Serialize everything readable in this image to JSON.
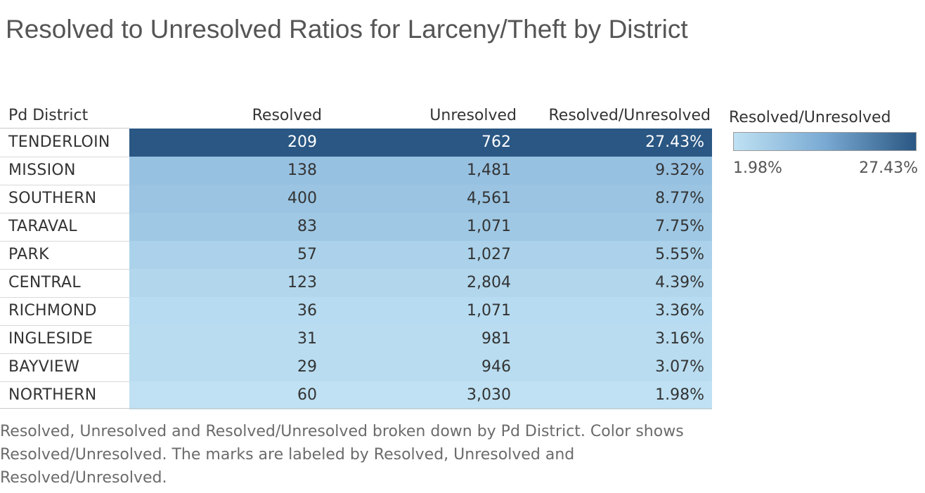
{
  "title": "Resolved to Unresolved Ratios for Larceny/Theft by District",
  "headers": {
    "district": "Pd District",
    "resolved": "Resolved",
    "unresolved": "Unresolved",
    "ratio": "Resolved/Unresolved"
  },
  "legend": {
    "title": "Resolved/Unresolved",
    "min_label": "1.98%",
    "max_label": "27.43%",
    "color_low": "#bfe1f3",
    "color_high": "#2a5783"
  },
  "caption": "Resolved, Unresolved and Resolved/Unresolved broken down by Pd District.  Color shows Resolved/Unresolved.  The marks are labeled by Resolved, Unresolved and Resolved/Unresolved.",
  "chart_data": {
    "type": "table",
    "columns": [
      "Pd District",
      "Resolved",
      "Unresolved",
      "Resolved/Unresolved"
    ],
    "color_field": "Resolved/Unresolved",
    "color_range": [
      1.98,
      27.43
    ],
    "rows": [
      {
        "district": "TENDERLOIN",
        "resolved": 209,
        "unresolved": 762,
        "ratio": 27.43,
        "resolved_label": "209",
        "unresolved_label": "762",
        "ratio_label": "27.43%"
      },
      {
        "district": "MISSION",
        "resolved": 138,
        "unresolved": 1481,
        "ratio": 9.32,
        "resolved_label": "138",
        "unresolved_label": "1,481",
        "ratio_label": "9.32%"
      },
      {
        "district": "SOUTHERN",
        "resolved": 400,
        "unresolved": 4561,
        "ratio": 8.77,
        "resolved_label": "400",
        "unresolved_label": "4,561",
        "ratio_label": "8.77%"
      },
      {
        "district": "TARAVAL",
        "resolved": 83,
        "unresolved": 1071,
        "ratio": 7.75,
        "resolved_label": "83",
        "unresolved_label": "1,071",
        "ratio_label": "7.75%"
      },
      {
        "district": "PARK",
        "resolved": 57,
        "unresolved": 1027,
        "ratio": 5.55,
        "resolved_label": "57",
        "unresolved_label": "1,027",
        "ratio_label": "5.55%"
      },
      {
        "district": "CENTRAL",
        "resolved": 123,
        "unresolved": 2804,
        "ratio": 4.39,
        "resolved_label": "123",
        "unresolved_label": "2,804",
        "ratio_label": "4.39%"
      },
      {
        "district": "RICHMOND",
        "resolved": 36,
        "unresolved": 1071,
        "ratio": 3.36,
        "resolved_label": "36",
        "unresolved_label": "1,071",
        "ratio_label": "3.36%"
      },
      {
        "district": "INGLESIDE",
        "resolved": 31,
        "unresolved": 981,
        "ratio": 3.16,
        "resolved_label": "31",
        "unresolved_label": "981",
        "ratio_label": "3.16%"
      },
      {
        "district": "BAYVIEW",
        "resolved": 29,
        "unresolved": 946,
        "ratio": 3.07,
        "resolved_label": "29",
        "unresolved_label": "946",
        "ratio_label": "3.07%"
      },
      {
        "district": "NORTHERN",
        "resolved": 60,
        "unresolved": 3030,
        "ratio": 1.98,
        "resolved_label": "60",
        "unresolved_label": "3,030",
        "ratio_label": "1.98%"
      }
    ]
  }
}
